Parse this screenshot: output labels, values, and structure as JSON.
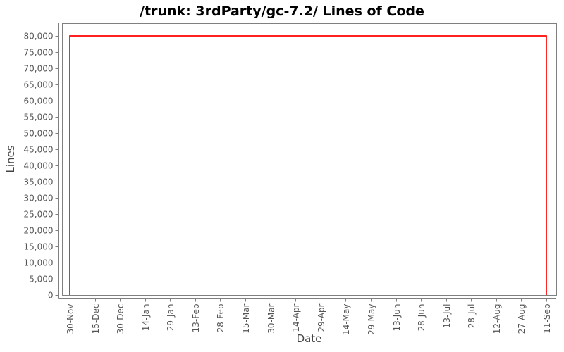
{
  "window": {
    "background": "#ffffff"
  },
  "chart_data": {
    "type": "line",
    "title": "/trunk: 3rdParty/gc-7.2/ Lines of Code",
    "xlabel": "Date",
    "ylabel": "Lines",
    "x_tick_labels": [
      "30-Nov",
      "15-Dec",
      "30-Dec",
      "14-Jan",
      "29-Jan",
      "13-Feb",
      "28-Feb",
      "15-Mar",
      "30-Mar",
      "14-Apr",
      "29-Apr",
      "14-May",
      "29-May",
      "13-Jun",
      "28-Jun",
      "13-Jul",
      "28-Jul",
      "12-Aug",
      "27-Aug",
      "11-Sep"
    ],
    "y_tick_values": [
      0,
      5000,
      10000,
      15000,
      20000,
      25000,
      30000,
      35000,
      40000,
      45000,
      50000,
      55000,
      60000,
      65000,
      70000,
      75000,
      80000
    ],
    "y_tick_labels": [
      "0",
      "5,000",
      "10,000",
      "15,000",
      "20,000",
      "25,000",
      "30,000",
      "35,000",
      "40,000",
      "45,000",
      "50,000",
      "55,000",
      "60,000",
      "65,000",
      "70,000",
      "75,000",
      "80,000"
    ],
    "ylim": [
      0,
      80000
    ],
    "grid": false,
    "legend": "none",
    "axis_color": "#808080",
    "tick_label_color": "#555555",
    "series": [
      {
        "name": "Lines of Code",
        "color": "#ff0000",
        "points": [
          [
            "30-Nov",
            0
          ],
          [
            "30-Nov",
            80000
          ],
          [
            "11-Sep",
            80000
          ],
          [
            "11-Sep",
            0
          ]
        ]
      }
    ]
  }
}
